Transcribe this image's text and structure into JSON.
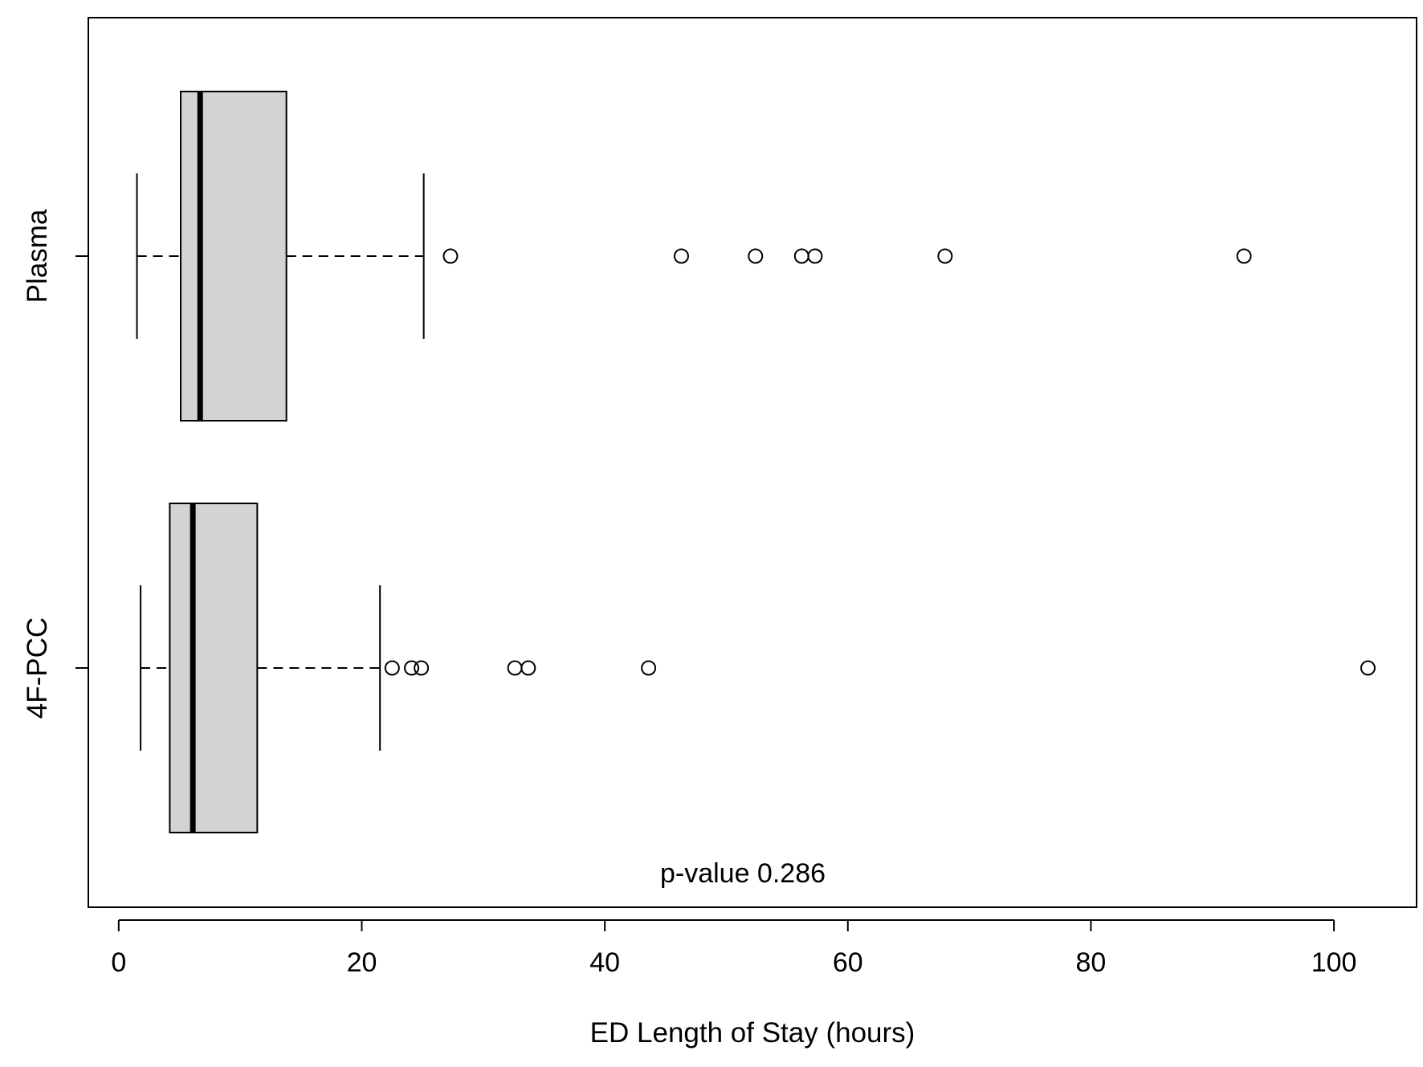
{
  "chart_data": {
    "type": "boxplot",
    "orientation": "horizontal",
    "xlabel": "ED Length of Stay (hours)",
    "ylabel": "",
    "xlim": [
      -2.5,
      106.8
    ],
    "x_ticks": [
      0,
      20,
      40,
      60,
      80,
      100
    ],
    "annotation": "p-value 0.286",
    "grid": false,
    "legend": "none",
    "colors": {
      "box_fill": "#d3d3d3",
      "stroke": "#000000"
    },
    "groups": [
      {
        "label": "4F-PCC",
        "whisker_low": 1.8,
        "q1": 4.2,
        "median": 6.1,
        "q3": 11.4,
        "whisker_high": 21.5,
        "outliers": [
          22.5,
          24.1,
          24.9,
          32.6,
          33.7,
          43.6,
          102.8
        ]
      },
      {
        "label": "Plasma",
        "whisker_low": 1.5,
        "q1": 5.1,
        "median": 6.7,
        "q3": 13.8,
        "whisker_high": 25.1,
        "outliers": [
          27.3,
          46.3,
          52.4,
          56.2,
          57.3,
          68.0,
          92.6
        ]
      }
    ]
  }
}
